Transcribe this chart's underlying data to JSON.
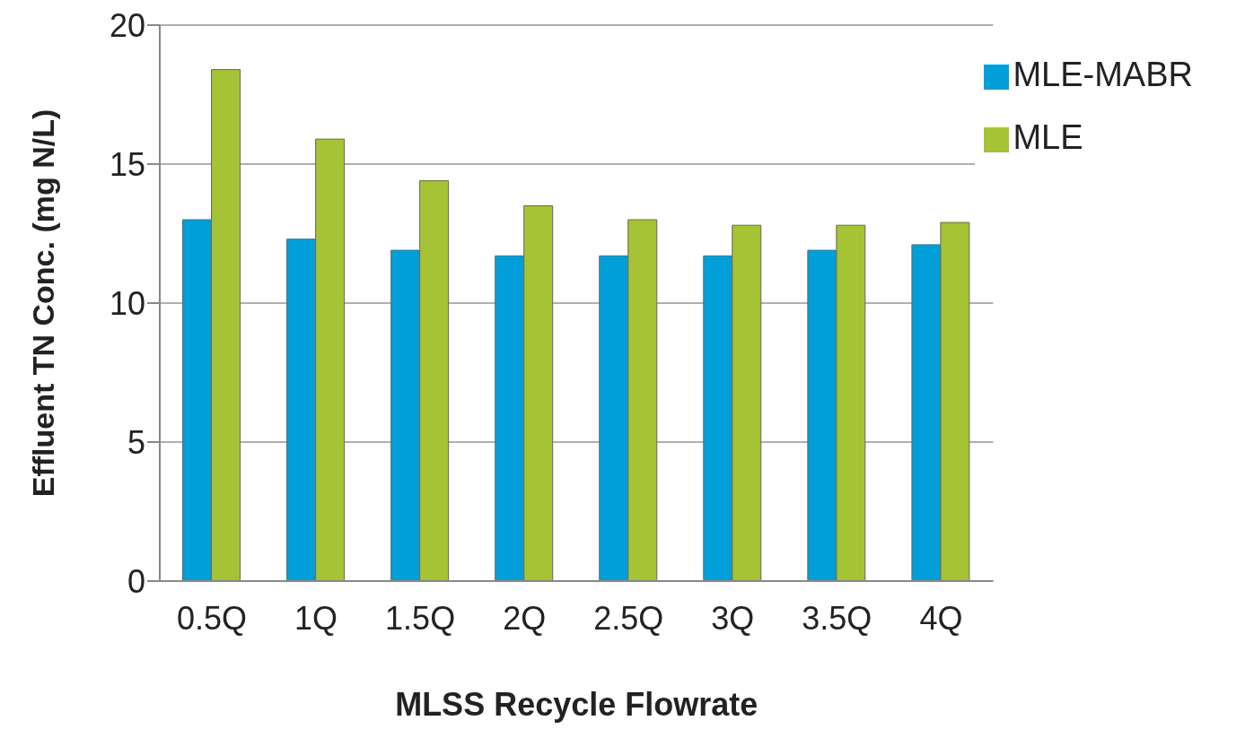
{
  "chart_data": {
    "type": "bar",
    "xlabel": "MLSS Recycle Flowrate",
    "ylabel": "Effluent TN Conc. (mg N/L)",
    "categories": [
      "0.5Q",
      "1Q",
      "1.5Q",
      "2Q",
      "2.5Q",
      "3Q",
      "3.5Q",
      "4Q"
    ],
    "series": [
      {
        "name": "MLE-MABR",
        "color": "#009fda",
        "values": [
          13.0,
          12.3,
          11.9,
          11.7,
          11.7,
          11.7,
          11.9,
          12.1
        ]
      },
      {
        "name": "MLE",
        "color": "#a5c335",
        "values": [
          18.4,
          15.9,
          14.4,
          13.5,
          13.0,
          12.8,
          12.8,
          12.9
        ]
      }
    ],
    "ylim": [
      0,
      20
    ],
    "yticks": [
      0,
      5,
      10,
      15,
      20
    ],
    "grid": "y",
    "legend": "top right"
  }
}
